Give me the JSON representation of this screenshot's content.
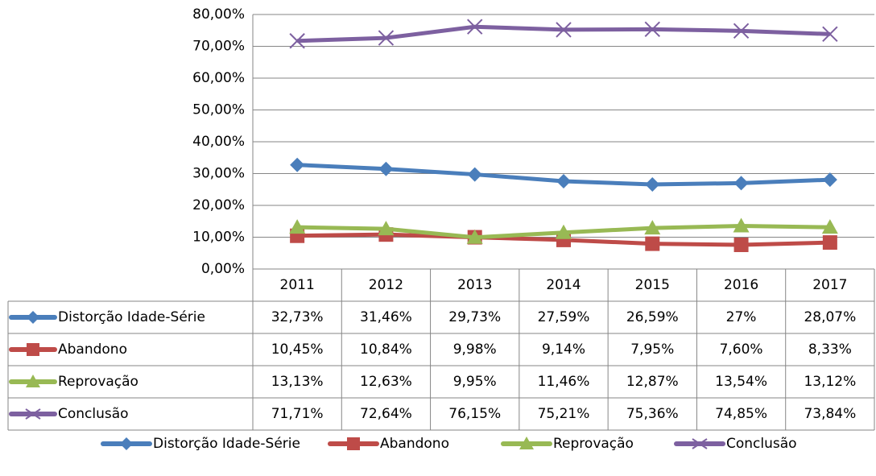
{
  "chart_data": {
    "type": "line",
    "categories": [
      "2011",
      "2012",
      "2013",
      "2014",
      "2015",
      "2016",
      "2017"
    ],
    "series": [
      {
        "name": "Distorção Idade-Série",
        "color": "#4a7ebb",
        "marker": "diamond",
        "values": [
          32.73,
          31.46,
          29.73,
          27.59,
          26.59,
          27,
          28.07
        ],
        "value_labels": [
          "32,73%",
          "31,46%",
          "29,73%",
          "27,59%",
          "26,59%",
          "27%",
          "28,07%"
        ]
      },
      {
        "name": "Abandono",
        "color": "#be4b48",
        "marker": "square",
        "values": [
          10.45,
          10.84,
          9.98,
          9.14,
          7.95,
          7.6,
          8.33
        ],
        "value_labels": [
          "10,45%",
          "10,84%",
          "9,98%",
          "9,14%",
          "7,95%",
          "7,60%",
          "8,33%"
        ]
      },
      {
        "name": "Reprovação",
        "color": "#98b954",
        "marker": "triangle",
        "values": [
          13.13,
          12.63,
          9.95,
          11.46,
          12.87,
          13.54,
          13.12
        ],
        "value_labels": [
          "13,13%",
          "12,63%",
          "9,95%",
          "11,46%",
          "12,87%",
          "13,54%",
          "13,12%"
        ]
      },
      {
        "name": "Conclusão",
        "color": "#7d60a0",
        "marker": "x",
        "values": [
          71.71,
          72.64,
          76.15,
          75.21,
          75.36,
          74.85,
          73.84
        ],
        "value_labels": [
          "71,71%",
          "72,64%",
          "76,15%",
          "75,21%",
          "75,36%",
          "74,85%",
          "73,84%"
        ]
      }
    ],
    "ylim": [
      0,
      80
    ],
    "yticks": [
      {
        "value": 0,
        "label": "0,00%"
      },
      {
        "value": 10,
        "label": "10,00%"
      },
      {
        "value": 20,
        "label": "20,00%"
      },
      {
        "value": 30,
        "label": "30,00%"
      },
      {
        "value": 40,
        "label": "40,00%"
      },
      {
        "value": 50,
        "label": "50,00%"
      },
      {
        "value": 60,
        "label": "60,00%"
      },
      {
        "value": 70,
        "label": "70,00%"
      },
      {
        "value": 80,
        "label": "80,00%"
      }
    ],
    "grid": true,
    "legend": "bottom",
    "data_table": true
  }
}
